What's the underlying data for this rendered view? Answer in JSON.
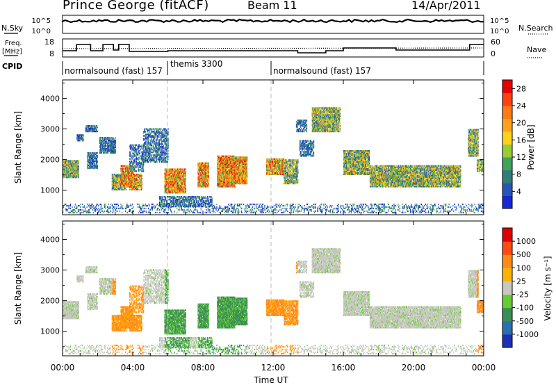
{
  "header": {
    "station": "Prince George (fitACF)",
    "beam": "Beam 11",
    "date": "14/Apr/2011"
  },
  "strips": {
    "nsky_label": "N.Sky",
    "nsky_ticks": [
      "10^5",
      "10^0"
    ],
    "nsearch_label": "N.Search",
    "nsearch_ticks": [
      "10^5",
      "10^0"
    ],
    "freq_label_line1": "Freq.",
    "freq_label_line2": "[MHz]",
    "freq_ticks": [
      "18",
      "8"
    ],
    "nave_label": "Nave",
    "nave_ticks": [
      "60",
      "0"
    ],
    "cpid_label": "CPID"
  },
  "cpid_segments": [
    {
      "label": "normalsound (fast) 157",
      "start_hour": 0
    },
    {
      "label": "themis 3300",
      "start_hour": 6.0
    },
    {
      "label": "normalsound (fast) 157",
      "start_hour": 12.0
    }
  ],
  "chart_data": [
    {
      "type": "heatmap",
      "panel": "power",
      "ylabel": "Slant Range [km]",
      "yticks": [
        "1000",
        "2000",
        "3000",
        "4000"
      ],
      "ylim": [
        200,
        4600
      ],
      "xlim_hours": [
        0,
        24
      ],
      "colorbar_label": "Power [dB]",
      "colorbar_ticks": [
        "4",
        "8",
        "12",
        "16",
        "20",
        "24",
        "28"
      ],
      "colorbar_range": [
        0,
        30
      ],
      "colors": [
        "#1428d8",
        "#2a55b8",
        "#2f7e7a",
        "#3fa35a",
        "#99cc33",
        "#ffd21a",
        "#ffa21a",
        "#ff7a12",
        "#ff4010",
        "#e80000"
      ]
    },
    {
      "type": "heatmap",
      "panel": "velocity",
      "ylabel": "Slant Range [km]",
      "yticks": [
        "1000",
        "2000",
        "3000",
        "4000"
      ],
      "ylim": [
        200,
        4600
      ],
      "xlim_hours": [
        0,
        24
      ],
      "colorbar_label": "Velocity  [m s⁻¹]",
      "colorbar_ticks": [
        "1000",
        "500",
        "100",
        "25",
        "-25",
        "-100",
        "-500",
        "-1000"
      ],
      "colors": [
        "#1e2fb8",
        "#2b6fb0",
        "#3a8f55",
        "#66cc33",
        "#c8c8c0",
        "#ffb300",
        "#ff8a1a",
        "#ff4a12",
        "#e00000"
      ]
    }
  ],
  "xaxis": {
    "label": "Time UT",
    "ticks": [
      "00:00",
      "04:00",
      "08:00",
      "12:00",
      "16:00",
      "20:00",
      "00:00"
    ]
  }
}
